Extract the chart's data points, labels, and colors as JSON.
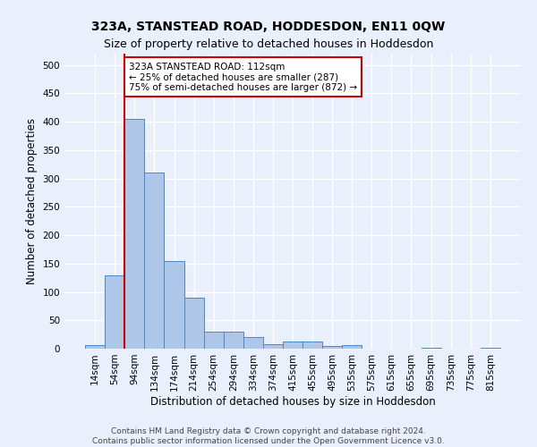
{
  "title": "323A, STANSTEAD ROAD, HODDESDON, EN11 0QW",
  "subtitle": "Size of property relative to detached houses in Hoddesdon",
  "xlabel": "Distribution of detached houses by size in Hoddesdon",
  "ylabel": "Number of detached properties",
  "categories": [
    "14sqm",
    "54sqm",
    "94sqm",
    "134sqm",
    "174sqm",
    "214sqm",
    "254sqm",
    "294sqm",
    "334sqm",
    "374sqm",
    "415sqm",
    "455sqm",
    "495sqm",
    "535sqm",
    "575sqm",
    "615sqm",
    "655sqm",
    "695sqm",
    "735sqm",
    "775sqm",
    "815sqm"
  ],
  "values": [
    6,
    130,
    405,
    310,
    155,
    90,
    30,
    30,
    20,
    8,
    13,
    13,
    5,
    6,
    0,
    0,
    0,
    2,
    0,
    0,
    2
  ],
  "bar_color": "#aec6e8",
  "bar_edge_color": "#4c86c6",
  "vline_color": "#cc0000",
  "annotation_text": "323A STANSTEAD ROAD: 112sqm\n← 25% of detached houses are smaller (287)\n75% of semi-detached houses are larger (872) →",
  "annotation_box_color": "#ffffff",
  "annotation_box_edge": "#cc0000",
  "ylim": [
    0,
    520
  ],
  "yticks": [
    0,
    50,
    100,
    150,
    200,
    250,
    300,
    350,
    400,
    450,
    500
  ],
  "footer_line1": "Contains HM Land Registry data © Crown copyright and database right 2024.",
  "footer_line2": "Contains public sector information licensed under the Open Government Licence v3.0.",
  "bg_color": "#eaf0fb",
  "plot_bg_color": "#eaf0fb",
  "grid_color": "#ffffff",
  "title_fontsize": 10,
  "subtitle_fontsize": 9,
  "axis_label_fontsize": 8.5,
  "tick_fontsize": 7.5,
  "annotation_fontsize": 7.5,
  "footer_fontsize": 6.5
}
